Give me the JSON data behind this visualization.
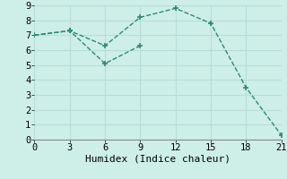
{
  "line1_x": [
    0,
    3,
    6,
    9,
    12,
    15,
    18,
    21
  ],
  "line1_y": [
    7.0,
    7.3,
    6.3,
    8.2,
    8.8,
    7.8,
    3.5,
    0.3
  ],
  "line2_x": [
    0,
    3,
    6,
    9
  ],
  "line2_y": [
    7.0,
    7.3,
    5.1,
    6.3
  ],
  "color": "#2d8b72",
  "bg_color": "#ceeee8",
  "grid_color": "#b8ddd8",
  "xlabel": "Humidex (Indice chaleur)",
  "xlim": [
    0,
    21
  ],
  "ylim": [
    0,
    9
  ],
  "xticks": [
    0,
    3,
    6,
    9,
    12,
    15,
    18,
    21
  ],
  "yticks": [
    0,
    1,
    2,
    3,
    4,
    5,
    6,
    7,
    8,
    9
  ],
  "marker": "+",
  "markersize": 5,
  "linewidth": 1.0,
  "linestyle": "--",
  "tick_fontsize": 7.5,
  "xlabel_fontsize": 8
}
